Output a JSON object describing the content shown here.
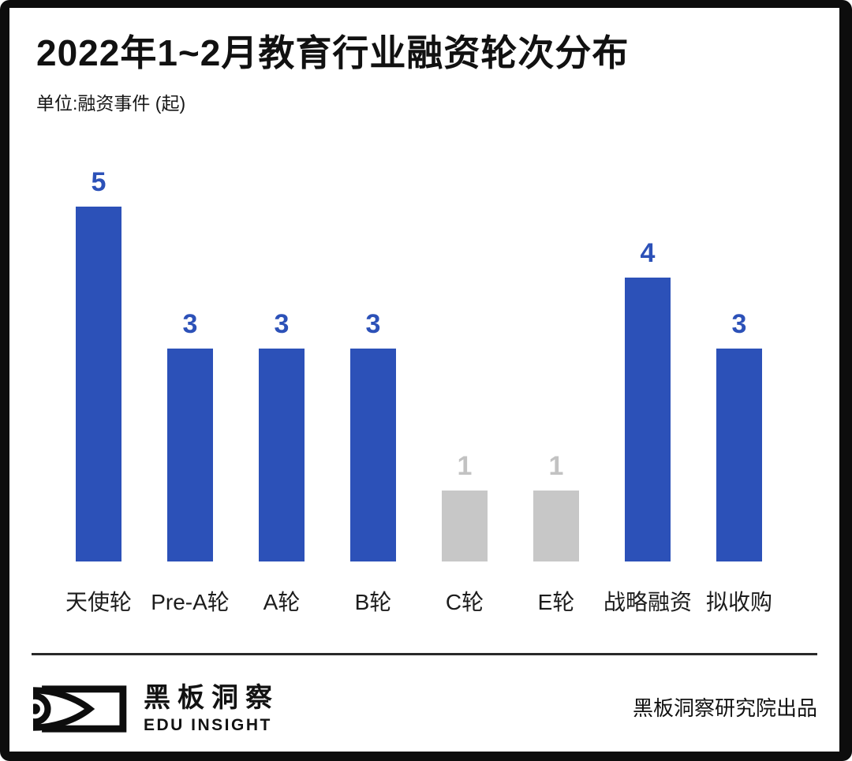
{
  "header": {
    "title": "2022年1~2月教育行业融资轮次分布",
    "subtitle": "单位:融资事件 (起)"
  },
  "chart_data": {
    "type": "bar",
    "title": "2022年1~2月教育行业融资轮次分布",
    "unit_label": "单位:融资事件 (起)",
    "categories": [
      "天使轮",
      "Pre-A轮",
      "A轮",
      "B轮",
      "C轮",
      "E轮",
      "战略融资",
      "拟收购"
    ],
    "values": [
      5,
      3,
      3,
      3,
      1,
      1,
      4,
      3
    ],
    "bar_colors": [
      "#2C51B8",
      "#2C51B8",
      "#2C51B8",
      "#2C51B8",
      "#C7C7C7",
      "#C7C7C7",
      "#2C51B8",
      "#2C51B8"
    ],
    "value_label_colors": [
      "#2C51B8",
      "#2C51B8",
      "#2C51B8",
      "#2C51B8",
      "#C2C2C2",
      "#C2C2C2",
      "#2C51B8",
      "#2C51B8"
    ],
    "ylim": [
      0,
      5
    ],
    "grid": false,
    "legend": null,
    "value_labels_shown": true,
    "xlabel": "",
    "ylabel": "融资事件 (起)"
  },
  "footer": {
    "logo_cn": "黑板洞察",
    "logo_en": "EDU INSIGHT",
    "credit": "黑板洞察研究院出品"
  },
  "colors": {
    "bar_blue": "#2C51B8",
    "bar_gray": "#C7C7C7",
    "text_dark": "#111111",
    "frame_black": "#0D0D0D",
    "divider": "#2A2A2A"
  }
}
